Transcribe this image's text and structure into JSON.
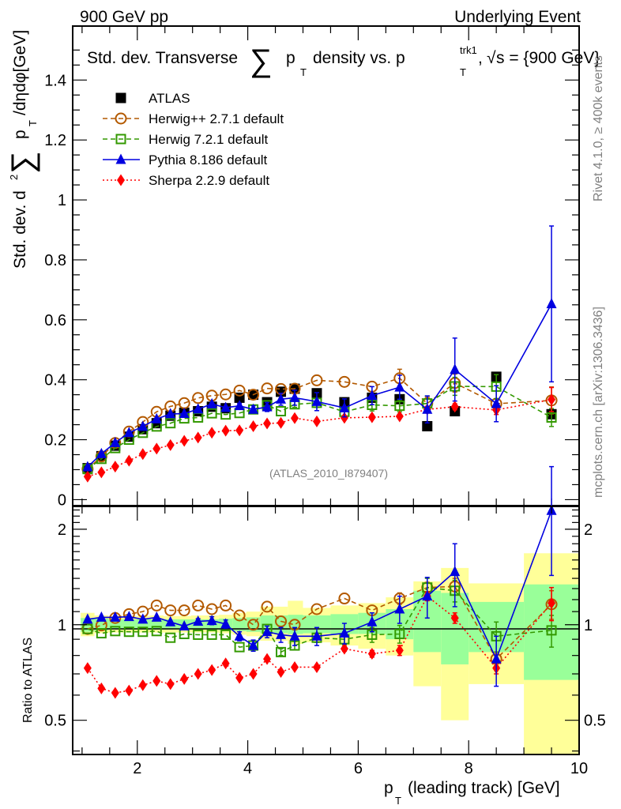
{
  "header": {
    "left": "900 GeV pp",
    "right": "Underlying Event"
  },
  "side_labels": {
    "rivet": "Rivet 4.1.0, ≥ 400k events",
    "mcplots": "mcplots.cern.ch [arXiv:1306.3436]"
  },
  "chart_data": [
    {
      "type": "line",
      "panel": "main",
      "title": "Std. dev. Transverse ∑ p_T density vs. p_T^trk1, √s = {900 GeV}",
      "title_parts": {
        "prefix": "Std. dev. Transverse",
        "sigma": "∑",
        "p": "p",
        "sub_T": "T",
        "mid": "density vs. p",
        "sup_trk1": "trk1",
        "sqrt": "√",
        "s_eq": "s = {900 GeV}"
      },
      "ylabel": "Std. dev. d²∑ p_T /dηdφ[GeV]",
      "ylabel_parts": {
        "pre": "Std. dev. d",
        "sup2": "2",
        "sigma": "∑",
        "p": "p",
        "sub_T": "T",
        "post": "/dηdφ[GeV]"
      },
      "xlabel": "",
      "xlim": [
        0.83,
        10
      ],
      "ylim": [
        -0.02,
        1.58
      ],
      "yticks": [
        0,
        0.2,
        0.4,
        0.6,
        0.8,
        1,
        1.2,
        1.4
      ],
      "ytick_labels": [
        "0",
        "0.2",
        "0.4",
        "0.6",
        "0.8",
        "1",
        "1.2",
        "1.4"
      ],
      "x": [
        1.1,
        1.35,
        1.6,
        1.85,
        2.1,
        2.35,
        2.6,
        2.85,
        3.1,
        3.35,
        3.6,
        3.85,
        4.1,
        4.35,
        4.6,
        4.85,
        5.25,
        5.75,
        6.25,
        6.75,
        7.25,
        7.75,
        8.5,
        9.5
      ],
      "x_halfwidth": [
        0.125,
        0.125,
        0.125,
        0.125,
        0.125,
        0.125,
        0.125,
        0.125,
        0.125,
        0.125,
        0.125,
        0.125,
        0.125,
        0.125,
        0.125,
        0.125,
        0.25,
        0.25,
        0.25,
        0.25,
        0.25,
        0.25,
        0.5,
        0.5
      ],
      "annotation": "(ATLAS_2010_I879407)",
      "legend_position": "top-left",
      "series": [
        {
          "name": "ATLAS",
          "key": "atlas",
          "color": "#000000",
          "marker": "square-filled",
          "line": "none",
          "values": [
            0.105,
            0.145,
            0.18,
            0.21,
            0.235,
            0.255,
            0.28,
            0.29,
            0.295,
            0.31,
            0.305,
            0.34,
            0.35,
            0.325,
            0.36,
            0.37,
            0.355,
            0.325,
            0.34,
            0.335,
            0.245,
            0.295,
            0.41,
            0.285
          ]
        },
        {
          "name": "Herwig++ 2.7.1 default",
          "key": "herwigpp",
          "color": "#b35900",
          "marker": "circle-open",
          "line": "dashed",
          "values": [
            0.102,
            0.144,
            0.189,
            0.227,
            0.259,
            0.293,
            0.311,
            0.322,
            0.339,
            0.347,
            0.351,
            0.364,
            0.35,
            0.371,
            0.369,
            0.37,
            0.398,
            0.393,
            0.377,
            0.405,
            0.321,
            0.389,
            0.32,
            0.331
          ],
          "errors": [
            0,
            0,
            0,
            0,
            0,
            0,
            0,
            0,
            0,
            0,
            0,
            0,
            0,
            0,
            0,
            0,
            0,
            0,
            0,
            0.03,
            0.02,
            0.03,
            0.015,
            0.045
          ]
        },
        {
          "name": "Herwig 7.2.1 default",
          "key": "herwig7",
          "color": "#339900",
          "marker": "square-open",
          "line": "dashed",
          "values": [
            0.102,
            0.136,
            0.172,
            0.2,
            0.223,
            0.244,
            0.255,
            0.271,
            0.274,
            0.288,
            0.284,
            0.289,
            0.301,
            0.315,
            0.295,
            0.318,
            0.323,
            0.293,
            0.316,
            0.313,
            0.321,
            0.378,
            0.377,
            0.274
          ],
          "errors": [
            0,
            0,
            0,
            0,
            0,
            0,
            0,
            0,
            0,
            0,
            0,
            0,
            0,
            0,
            0,
            0.01,
            0.015,
            0.015,
            0.02,
            0.02,
            0.025,
            0.03,
            0.04,
            0.03
          ]
        },
        {
          "name": "Pythia 8.186 default",
          "key": "pythia",
          "color": "#0000e0",
          "marker": "triangle-filled",
          "line": "solid",
          "values": [
            0.109,
            0.153,
            0.19,
            0.223,
            0.244,
            0.269,
            0.286,
            0.287,
            0.302,
            0.319,
            0.307,
            0.313,
            0.301,
            0.309,
            0.335,
            0.34,
            0.327,
            0.306,
            0.347,
            0.375,
            0.301,
            0.434,
            0.32,
            0.653
          ],
          "errors": [
            0,
            0,
            0,
            0,
            0,
            0,
            0,
            0,
            0,
            0,
            0,
            0.008,
            0.012,
            0.015,
            0.02,
            0.025,
            0.03,
            0.03,
            0.03,
            0.04,
            0.045,
            0.105,
            0.06,
            0.26
          ]
        },
        {
          "name": "Sherpa 2.2.9 default",
          "key": "sherpa",
          "color": "#ff0000",
          "marker": "diamond-filled",
          "line": "dotted",
          "values": [
            0.077,
            0.091,
            0.11,
            0.13,
            0.152,
            0.17,
            0.182,
            0.196,
            0.207,
            0.223,
            0.23,
            0.231,
            0.245,
            0.254,
            0.256,
            0.272,
            0.261,
            0.273,
            0.275,
            0.278,
            0.301,
            0.31,
            0.299,
            0.334
          ],
          "errors": [
            0,
            0,
            0,
            0,
            0,
            0,
            0,
            0,
            0,
            0,
            0,
            0,
            0,
            0,
            0,
            0,
            0,
            0,
            0,
            0,
            0.01,
            0.01,
            0.015,
            0.04
          ]
        }
      ]
    },
    {
      "type": "line",
      "panel": "ratio",
      "ylabel": "Ratio to ATLAS",
      "xlabel": "p_T (leading track) [GeV]",
      "xlabel_parts": {
        "p": "p",
        "sub_T": "T",
        "rest": "(leading track) [GeV]"
      },
      "xlim": [
        0.83,
        10
      ],
      "xticks": [
        2,
        4,
        6,
        8,
        10
      ],
      "xtick_labels": [
        "2",
        "4",
        "6",
        "8",
        "10"
      ],
      "yscale": "log",
      "ylim": [
        0.39,
        2.36
      ],
      "yticks": [
        0.5,
        1,
        2
      ],
      "ytick_labels": [
        "0.5",
        "1",
        "2"
      ],
      "reference_line": 1,
      "x": [
        1.1,
        1.35,
        1.6,
        1.85,
        2.1,
        2.35,
        2.6,
        2.85,
        3.1,
        3.35,
        3.6,
        3.85,
        4.1,
        4.35,
        4.6,
        4.85,
        5.25,
        5.75,
        6.25,
        6.75,
        7.25,
        7.75,
        8.5,
        9.5
      ],
      "bands": {
        "stat_color": "#99ff99",
        "total_color": "#ffff99",
        "bins": [
          {
            "lo": 0.975,
            "hi": 1.225,
            "green": [
              0.95,
              1.05
            ],
            "yellow": [
              0.92,
              1.09
            ]
          },
          {
            "lo": 1.225,
            "hi": 1.475,
            "green": [
              0.96,
              1.045
            ],
            "yellow": [
              0.94,
              1.07
            ]
          },
          {
            "lo": 1.475,
            "hi": 1.725,
            "green": [
              0.965,
              1.04
            ],
            "yellow": [
              0.945,
              1.065
            ]
          },
          {
            "lo": 1.725,
            "hi": 1.975,
            "green": [
              0.965,
              1.04
            ],
            "yellow": [
              0.945,
              1.065
            ]
          },
          {
            "lo": 1.975,
            "hi": 2.225,
            "green": [
              0.965,
              1.04
            ],
            "yellow": [
              0.945,
              1.065
            ]
          },
          {
            "lo": 2.225,
            "hi": 2.475,
            "green": [
              0.965,
              1.04
            ],
            "yellow": [
              0.945,
              1.07
            ]
          },
          {
            "lo": 2.475,
            "hi": 2.725,
            "green": [
              0.965,
              1.04
            ],
            "yellow": [
              0.945,
              1.065
            ]
          },
          {
            "lo": 2.725,
            "hi": 2.975,
            "green": [
              0.965,
              1.04
            ],
            "yellow": [
              0.945,
              1.065
            ]
          },
          {
            "lo": 2.975,
            "hi": 3.225,
            "green": [
              0.965,
              1.04
            ],
            "yellow": [
              0.945,
              1.07
            ]
          },
          {
            "lo": 3.225,
            "hi": 3.475,
            "green": [
              0.965,
              1.04
            ],
            "yellow": [
              0.945,
              1.07
            ]
          },
          {
            "lo": 3.475,
            "hi": 3.725,
            "green": [
              0.96,
              1.045
            ],
            "yellow": [
              0.94,
              1.075
            ]
          },
          {
            "lo": 3.725,
            "hi": 3.975,
            "green": [
              0.955,
              1.05
            ],
            "yellow": [
              0.93,
              1.09
            ]
          },
          {
            "lo": 3.975,
            "hi": 4.225,
            "green": [
              0.95,
              1.055
            ],
            "yellow": [
              0.92,
              1.1
            ]
          },
          {
            "lo": 4.225,
            "hi": 4.475,
            "green": [
              0.94,
              1.07
            ],
            "yellow": [
              0.89,
              1.14
            ]
          },
          {
            "lo": 4.475,
            "hi": 4.725,
            "green": [
              0.94,
              1.07
            ],
            "yellow": [
              0.89,
              1.14
            ]
          },
          {
            "lo": 4.725,
            "hi": 5.0,
            "green": [
              0.935,
              1.075
            ],
            "yellow": [
              0.87,
              1.19
            ]
          },
          {
            "lo": 5.0,
            "hi": 5.5,
            "green": [
              0.94,
              1.07
            ],
            "yellow": [
              0.88,
              1.13
            ]
          },
          {
            "lo": 5.5,
            "hi": 6.0,
            "green": [
              0.935,
              1.08
            ],
            "yellow": [
              0.86,
              1.15
            ]
          },
          {
            "lo": 6.0,
            "hi": 6.5,
            "green": [
              0.935,
              1.09
            ],
            "yellow": [
              0.84,
              1.17
            ]
          },
          {
            "lo": 6.5,
            "hi": 7.0,
            "green": [
              0.9,
              1.12
            ],
            "yellow": [
              0.8,
              1.22
            ]
          },
          {
            "lo": 7.0,
            "hi": 7.5,
            "green": [
              0.82,
              1.28
            ],
            "yellow": [
              0.64,
              1.37
            ]
          },
          {
            "lo": 7.5,
            "hi": 8.0,
            "green": [
              0.75,
              1.26
            ],
            "yellow": [
              0.5,
              1.51
            ]
          },
          {
            "lo": 8.0,
            "hi": 9.0,
            "green": [
              0.82,
              1.18
            ],
            "yellow": [
              0.65,
              1.35
            ]
          },
          {
            "lo": 9.0,
            "hi": 10.0,
            "green": [
              0.67,
              1.34
            ],
            "yellow": [
              0.39,
              1.68
            ]
          }
        ]
      },
      "series": [
        {
          "name": "Herwig++ 2.7.1 default",
          "key": "herwigpp",
          "color": "#b35900",
          "marker": "circle-open",
          "line": "dashed",
          "values": [
            0.97,
            0.995,
            1.05,
            1.08,
            1.1,
            1.15,
            1.11,
            1.11,
            1.15,
            1.12,
            1.15,
            1.07,
            1.0,
            1.14,
            1.025,
            1.0,
            1.12,
            1.21,
            1.11,
            1.21,
            1.31,
            1.32,
            0.78,
            1.16
          ],
          "errors": [
            0,
            0,
            0,
            0,
            0,
            0,
            0,
            0,
            0,
            0,
            0,
            0,
            0,
            0,
            0,
            0,
            0,
            0,
            0,
            0.05,
            0.05,
            0.08,
            0.04,
            0.12
          ]
        },
        {
          "name": "Herwig 7.2.1 default",
          "key": "herwig7",
          "color": "#339900",
          "marker": "square-open",
          "line": "dashed",
          "values": [
            0.97,
            0.94,
            0.955,
            0.95,
            0.95,
            0.955,
            0.91,
            0.935,
            0.93,
            0.93,
            0.93,
            0.85,
            0.86,
            0.97,
            0.82,
            0.86,
            0.91,
            0.9,
            0.93,
            0.935,
            1.31,
            1.28,
            0.92,
            0.96
          ],
          "errors": [
            0,
            0,
            0,
            0,
            0,
            0,
            0,
            0,
            0,
            0,
            0,
            0,
            0,
            0,
            0.02,
            0.025,
            0.03,
            0.035,
            0.05,
            0.06,
            0.09,
            0.1,
            0.1,
            0.11
          ]
        },
        {
          "name": "Pythia 8.186 default",
          "key": "pythia",
          "color": "#0000e0",
          "marker": "triangle-filled",
          "line": "solid",
          "values": [
            1.04,
            1.055,
            1.055,
            1.06,
            1.04,
            1.055,
            1.02,
            0.99,
            1.025,
            1.03,
            1.005,
            0.92,
            0.86,
            0.95,
            0.93,
            0.92,
            0.92,
            0.94,
            1.02,
            1.12,
            1.23,
            1.47,
            0.78,
            2.29
          ],
          "errors": [
            0,
            0,
            0,
            0,
            0,
            0,
            0,
            0,
            0.02,
            0.03,
            0.03,
            0.03,
            0.035,
            0.04,
            0.05,
            0.06,
            0.06,
            0.07,
            0.07,
            0.11,
            0.18,
            0.33,
            0.14,
            0.86
          ]
        },
        {
          "name": "Sherpa 2.2.9 default",
          "key": "sherpa",
          "color": "#ff0000",
          "marker": "diamond-filled",
          "line": "dotted",
          "values": [
            0.73,
            0.63,
            0.61,
            0.62,
            0.645,
            0.665,
            0.65,
            0.675,
            0.7,
            0.72,
            0.755,
            0.68,
            0.7,
            0.78,
            0.71,
            0.735,
            0.735,
            0.84,
            0.81,
            0.83,
            1.23,
            1.05,
            0.73,
            1.17
          ],
          "errors": [
            0,
            0,
            0,
            0,
            0,
            0,
            0,
            0,
            0,
            0,
            0,
            0,
            0,
            0,
            0,
            0,
            0,
            0.015,
            0.02,
            0.03,
            0.04,
            0.04,
            0.03,
            0.14
          ]
        }
      ]
    }
  ]
}
